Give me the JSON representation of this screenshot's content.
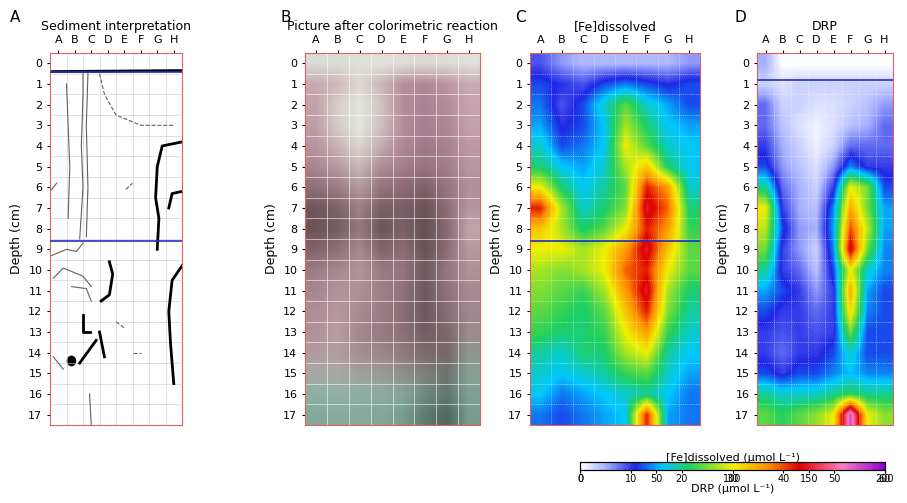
{
  "chart_data": [
    {
      "type": "diagram",
      "panel_label": "A",
      "title": "Sediment interpretation",
      "categories": [
        "A",
        "B",
        "C",
        "D",
        "E",
        "F",
        "G",
        "H"
      ],
      "ylabel": "Depth (cm)",
      "ylim": [
        17.5,
        -0.5
      ],
      "yticks": [
        0,
        1,
        2,
        3,
        4,
        5,
        6,
        7,
        8,
        9,
        10,
        11,
        12,
        13,
        14,
        15,
        16,
        17
      ],
      "boundaries": [
        0.4,
        8.6
      ],
      "grid": true
    },
    {
      "type": "image",
      "panel_label": "B",
      "title": "Picture after colorimetric reaction",
      "categories": [
        "A",
        "B",
        "C",
        "D",
        "E",
        "F",
        "G",
        "H"
      ],
      "ylabel": "Depth (cm)",
      "ylim": [
        17.5,
        -0.5
      ],
      "yticks": [
        0,
        1,
        2,
        3,
        4,
        5,
        6,
        7,
        8,
        9,
        10,
        11,
        12,
        13,
        14,
        15,
        16,
        17
      ],
      "grid": true,
      "colors": [
        [
          "#d9ddd6",
          "#dadcd5",
          "#dedfd8",
          "#e3e3dc",
          "#e0ddd8",
          "#dcd8d4",
          "#dddcd7",
          "#e2e2dc"
        ],
        [
          "#c7a9b0",
          "#cfb8bc",
          "#dcd9d0",
          "#cdb5b9",
          "#b68f9d",
          "#b18898",
          "#bb95a2",
          "#c8aab3"
        ],
        [
          "#c3a3ab",
          "#d6cfc8",
          "#e2e6dc",
          "#d2c2c2",
          "#b58c9a",
          "#ad8393",
          "#b48d9b",
          "#c6a5af"
        ],
        [
          "#bf9ea7",
          "#d4ccc6",
          "#e4e8de",
          "#d0bfc0",
          "#b48b99",
          "#a87f8f",
          "#ae8695",
          "#c3a1ab"
        ],
        [
          "#b8949e",
          "#c9b3b6",
          "#d9d6ce",
          "#c5abb0",
          "#b08796",
          "#a27a8a",
          "#a98190",
          "#bd9aa5"
        ],
        [
          "#a88690",
          "#b59aa2",
          "#c8b8b9",
          "#ad8d96",
          "#a47e8c",
          "#967480",
          "#a27e8b",
          "#b797a1"
        ],
        [
          "#8e7078",
          "#9c7d86",
          "#b39aa1",
          "#94747d",
          "#8d6c77",
          "#7e626a",
          "#977680",
          "#b08f99"
        ],
        [
          "#6f575c",
          "#7d6268",
          "#9c8288",
          "#7b6066",
          "#7a5f66",
          "#6c5358",
          "#8d6e77",
          "#b596a0"
        ],
        [
          "#6b5458",
          "#765d62",
          "#93787e",
          "#6e5559",
          "#7c6168",
          "#655056",
          "#866871",
          "#bfa5ab"
        ],
        [
          "#806469",
          "#8d7076",
          "#a48990",
          "#80656b",
          "#8a6d74",
          "#6a5459",
          "#8b6d76",
          "#b599a1"
        ],
        [
          "#9b7d85",
          "#a68890",
          "#b0949b",
          "#987a82",
          "#937680",
          "#705a60",
          "#94767f",
          "#ae929a"
        ],
        [
          "#a7878f",
          "#b1939b",
          "#ad9098",
          "#9e8088",
          "#8f727b",
          "#6e585e",
          "#8f727b",
          "#a78b93"
        ],
        [
          "#ad8e96",
          "#b697a0",
          "#a88a92",
          "#9a7c84",
          "#8a6e76",
          "#6d575d",
          "#8a6e76",
          "#a08690"
        ],
        [
          "#b0939a",
          "#b99ca4",
          "#a3868e",
          "#977a82",
          "#8c7078",
          "#735d63",
          "#7f676d",
          "#9c8b8c"
        ],
        [
          "#b09aa0",
          "#b49ea3",
          "#a58d93",
          "#9e878c",
          "#917a80",
          "#7d6a6e",
          "#76686a",
          "#8f9690"
        ],
        [
          "#a6aaa4",
          "#a8a9a3",
          "#a0a09a",
          "#9b9a95",
          "#918f8a",
          "#7f7f7a",
          "#6f7470",
          "#86a096"
        ],
        [
          "#8fb0a5",
          "#92b2a7",
          "#90afa4",
          "#8daca1",
          "#86a59a",
          "#6f8a81",
          "#5f7770",
          "#80a195"
        ],
        [
          "#85a89c",
          "#88ab9f",
          "#87aa9e",
          "#84a79b",
          "#7b9d91",
          "#5e7a71",
          "#4f6861",
          "#789b8f"
        ]
      ]
    },
    {
      "type": "heatmap",
      "panel_label": "C",
      "title": "[Fe]dissolved",
      "categories": [
        "A",
        "B",
        "C",
        "D",
        "E",
        "F",
        "G",
        "H"
      ],
      "ylabel": "Depth (cm)",
      "ylim": [
        17.5,
        -0.5
      ],
      "yticks": [
        0,
        1,
        2,
        3,
        4,
        5,
        6,
        7,
        8,
        9,
        10,
        11,
        12,
        13,
        14,
        15,
        16,
        17
      ],
      "boundaries": [
        8.6
      ],
      "grid": true,
      "cells": [
        [
          30,
          20,
          15,
          15,
          15,
          15,
          15,
          20
        ],
        [
          40,
          35,
          30,
          40,
          45,
          40,
          35,
          40
        ],
        [
          45,
          30,
          40,
          60,
          80,
          60,
          50,
          40
        ],
        [
          50,
          35,
          40,
          55,
          90,
          70,
          55,
          50
        ],
        [
          60,
          40,
          45,
          55,
          100,
          80,
          60,
          55
        ],
        [
          70,
          55,
          50,
          60,
          90,
          110,
          70,
          55
        ],
        [
          100,
          70,
          55,
          65,
          80,
          140,
          120,
          60
        ],
        [
          140,
          90,
          60,
          70,
          85,
          150,
          130,
          70
        ],
        [
          110,
          90,
          70,
          80,
          100,
          140,
          120,
          75
        ],
        [
          100,
          100,
          90,
          100,
          120,
          150,
          110,
          80
        ],
        [
          90,
          85,
          90,
          100,
          130,
          140,
          100,
          80
        ],
        [
          85,
          80,
          75,
          90,
          120,
          150,
          90,
          70
        ],
        [
          80,
          75,
          70,
          80,
          110,
          140,
          85,
          65
        ],
        [
          75,
          70,
          70,
          75,
          100,
          120,
          75,
          60
        ],
        [
          65,
          60,
          70,
          70,
          90,
          100,
          65,
          55
        ],
        [
          60,
          55,
          60,
          65,
          75,
          80,
          60,
          50
        ],
        [
          55,
          45,
          50,
          55,
          60,
          65,
          55,
          45
        ],
        [
          45,
          40,
          45,
          50,
          55,
          140,
          50,
          45
        ]
      ],
      "colorbar": {
        "label": "[Fe]dissolved (µmol L⁻¹)",
        "range": [
          0,
          200
        ],
        "ticks": [
          0,
          50,
          100,
          150,
          200
        ]
      }
    },
    {
      "type": "heatmap",
      "panel_label": "D",
      "title": "DRP",
      "categories": [
        "A",
        "B",
        "C",
        "D",
        "E",
        "F",
        "G",
        "H"
      ],
      "ylabel": "Depth (cm)",
      "ylim": [
        17.5,
        -0.5
      ],
      "yticks": [
        0,
        1,
        2,
        3,
        4,
        5,
        6,
        7,
        8,
        9,
        10,
        11,
        12,
        13,
        14,
        15,
        16,
        17
      ],
      "boundaries": [
        0.8
      ],
      "grid": true,
      "cells": [
        [
          5,
          0,
          0,
          0,
          0,
          0,
          0,
          0
        ],
        [
          3,
          2,
          3,
          3,
          3,
          3,
          3,
          3
        ],
        [
          8,
          3,
          3,
          2,
          2,
          3,
          4,
          6
        ],
        [
          8,
          4,
          2,
          1,
          2,
          4,
          5,
          8
        ],
        [
          10,
          5,
          3,
          1,
          3,
          8,
          8,
          8
        ],
        [
          12,
          6,
          4,
          2,
          6,
          14,
          10,
          10
        ],
        [
          20,
          8,
          5,
          3,
          10,
          30,
          25,
          12
        ],
        [
          30,
          10,
          5,
          4,
          14,
          35,
          25,
          15
        ],
        [
          28,
          12,
          6,
          5,
          15,
          40,
          28,
          15
        ],
        [
          25,
          10,
          6,
          3,
          14,
          45,
          25,
          14
        ],
        [
          20,
          10,
          8,
          4,
          12,
          30,
          18,
          14
        ],
        [
          15,
          12,
          10,
          6,
          10,
          35,
          15,
          12
        ],
        [
          12,
          10,
          10,
          8,
          10,
          32,
          14,
          12
        ],
        [
          10,
          9,
          10,
          9,
          10,
          25,
          12,
          12
        ],
        [
          10,
          8,
          10,
          10,
          12,
          18,
          12,
          12
        ],
        [
          12,
          10,
          12,
          12,
          14,
          16,
          14,
          14
        ],
        [
          20,
          18,
          18,
          18,
          20,
          22,
          20,
          20
        ],
        [
          24,
          22,
          24,
          26,
          30,
          55,
          30,
          26
        ]
      ],
      "colorbar": {
        "label": "DRP (µmol L⁻¹)",
        "range": [
          0,
          60
        ],
        "ticks": [
          0,
          10,
          20,
          30,
          40,
          50,
          60
        ]
      }
    }
  ]
}
